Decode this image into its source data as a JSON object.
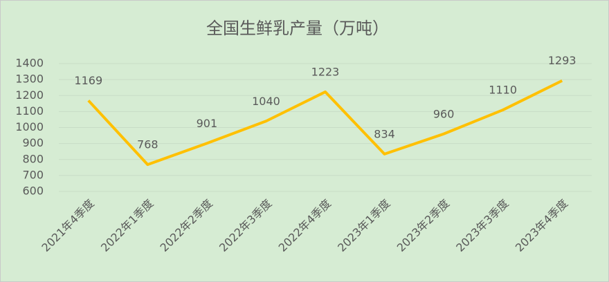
{
  "chart_data": {
    "type": "line",
    "title": "全国生鲜乳产量（万吨）",
    "categories": [
      "2021年4季度",
      "2022年1季度",
      "2022年2季度",
      "2022年3季度",
      "2022年4季度",
      "2023年1季度",
      "2023年2季度",
      "2023年3季度",
      "2023年4季度"
    ],
    "values": [
      1169,
      768,
      901,
      1040,
      1223,
      834,
      960,
      1110,
      1293
    ],
    "color": "#ffc000",
    "ylim": [
      600,
      1400
    ],
    "yticks": [
      600,
      700,
      800,
      900,
      1000,
      1100,
      1200,
      1300,
      1400
    ],
    "grid": true,
    "data_labels": true
  }
}
